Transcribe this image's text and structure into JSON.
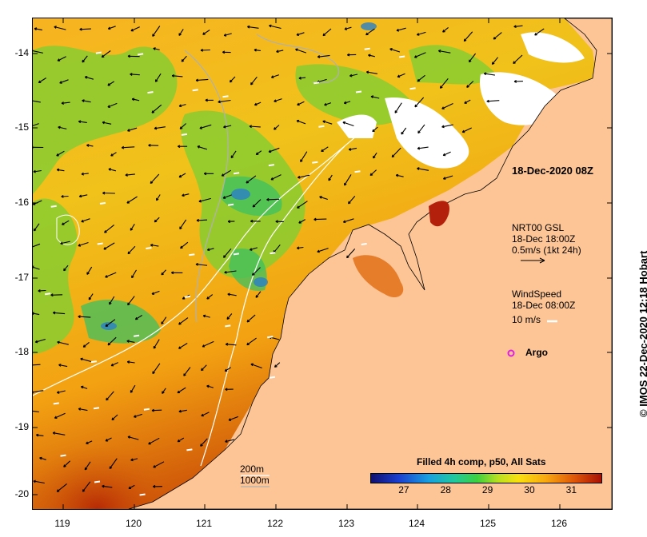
{
  "map": {
    "timestamp": "18-Dec-2020 08Z",
    "credit": "© IMOS 22-Dec-2020 12:18 Hobart",
    "lat_ticks": [
      "-14",
      "-15",
      "-16",
      "-17",
      "-18",
      "-19",
      "-20"
    ],
    "lon_ticks": [
      "119",
      "120",
      "121",
      "122",
      "123",
      "124",
      "125",
      "126"
    ],
    "lat_range": [
      -20.2,
      -13.5
    ],
    "lon_range": [
      118.65,
      126.8
    ],
    "current_legend": {
      "source": "NRT00 GSL",
      "time": "18-Dec 18:00Z",
      "scale": "0.5m/s (1kt 24h)"
    },
    "wind_legend": {
      "label": "WindSpeed",
      "time": "18-Dec 08:00Z",
      "scale": "10 m/s"
    },
    "argo_label": "Argo",
    "isobaths": [
      "200m",
      "1000m"
    ],
    "colorbar": {
      "title": "Filled 4h comp, p50, All Sats",
      "ticks": [
        "27",
        "28",
        "29",
        "30",
        "31"
      ],
      "tick_values": [
        27,
        28,
        29,
        30,
        31
      ],
      "range": [
        26.2,
        31.7
      ]
    },
    "colors": {
      "land": "#fdc596",
      "cloud": "#ffffff",
      "argo": "#e020e0",
      "isobath_200": "#ffffff",
      "isobath_1000": "#b0b0b0"
    }
  }
}
